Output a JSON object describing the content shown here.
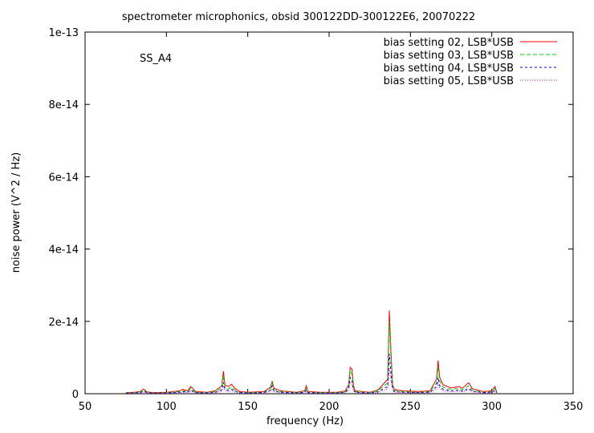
{
  "chart_data": {
    "type": "line",
    "title": "spectrometer microphonics, obsid 300122DD-300122E6, 20070222",
    "xlabel": "frequency (Hz)",
    "ylabel": "noise power (V^2 / Hz)",
    "annotation": "SS_A4",
    "xlim": [
      50,
      350
    ],
    "ylim": [
      0,
      1e-13
    ],
    "x_ticks": [
      50,
      100,
      150,
      200,
      250,
      300,
      350
    ],
    "x_tick_labels": [
      "50",
      "100",
      "150",
      "200",
      "250",
      "300",
      "350"
    ],
    "y_ticks": [
      0,
      2e-14,
      4e-14,
      6e-14,
      8e-14,
      1e-13
    ],
    "y_tick_labels": [
      "0",
      "2e-14",
      "4e-14",
      "6e-14",
      "8e-14",
      "1e-13"
    ],
    "legend_position": "top-right",
    "grid": false,
    "x": [
      75,
      80,
      84,
      86,
      88,
      92,
      100,
      108,
      110,
      113,
      115,
      118,
      125,
      130,
      134,
      135,
      136,
      138,
      140,
      142,
      145,
      150,
      160,
      164,
      165,
      166,
      170,
      180,
      185,
      186,
      187,
      195,
      205,
      210,
      212,
      213,
      214,
      215,
      216,
      225,
      230,
      236,
      237,
      238,
      239,
      240,
      245,
      255,
      262,
      266,
      267,
      268,
      270,
      275,
      280,
      282,
      285,
      286,
      288,
      295,
      300,
      302,
      303
    ],
    "series": [
      {
        "name": "bias setting 02, LSB*USB",
        "color": "#ff0000",
        "dash": "",
        "values": [
          3e-16,
          4e-16,
          6e-16,
          1.3e-15,
          5e-16,
          3e-16,
          4e-16,
          8e-16,
          1.2e-15,
          8e-16,
          2e-15,
          6e-16,
          4e-16,
          8e-16,
          2.2e-15,
          6.2e-15,
          2.4e-15,
          2e-15,
          2.6e-15,
          1.5e-15,
          6e-16,
          4e-16,
          6e-16,
          1.8e-15,
          3.5e-15,
          1.6e-15,
          8e-16,
          4e-16,
          8e-16,
          2.2e-15,
          6e-16,
          4e-16,
          4e-16,
          8e-16,
          2.5e-15,
          7.3e-15,
          6.8e-15,
          2.2e-15,
          8e-16,
          4e-16,
          1e-15,
          4e-15,
          2.3e-14,
          1.2e-14,
          2.6e-15,
          1.2e-15,
          8e-16,
          6e-16,
          8e-16,
          4e-15,
          9.2e-15,
          4.5e-15,
          2.5e-15,
          1.6e-15,
          2e-15,
          1.5e-15,
          2.8e-15,
          3e-15,
          1.4e-15,
          6e-16,
          8e-16,
          2e-15,
          5e-16
        ]
      },
      {
        "name": "bias setting 03, LSB*USB",
        "color": "#00cc00",
        "dash": "5,3",
        "values": [
          2e-16,
          3e-16,
          5e-16,
          1e-15,
          4e-16,
          2e-16,
          3e-16,
          6e-16,
          9e-16,
          6e-16,
          1.5e-15,
          4e-16,
          3e-16,
          6e-16,
          1.6e-15,
          5e-15,
          1.8e-15,
          1.3e-15,
          1.8e-15,
          1e-15,
          4e-16,
          3e-16,
          4e-16,
          1.5e-15,
          3e-15,
          1.2e-15,
          6e-16,
          3e-16,
          6e-16,
          1.6e-15,
          4e-16,
          3e-16,
          3e-16,
          6e-16,
          2e-15,
          6.5e-15,
          5.5e-15,
          1.6e-15,
          6e-16,
          3e-16,
          8e-16,
          3e-15,
          2e-14,
          1e-14,
          2e-15,
          9e-16,
          6e-16,
          4e-16,
          6e-16,
          3e-15,
          7.5e-15,
          3.5e-15,
          1.8e-15,
          1.2e-15,
          1.5e-15,
          1.1e-15,
          2e-15,
          2.2e-15,
          1e-15,
          4e-16,
          6e-16,
          1.5e-15,
          4e-16
        ]
      },
      {
        "name": "bias setting 04, LSB*USB",
        "color": "#0000cc",
        "dash": "3,3",
        "values": [
          1e-16,
          2e-16,
          3e-16,
          7e-16,
          3e-16,
          1e-16,
          2e-16,
          4e-16,
          6e-16,
          4e-16,
          1e-15,
          3e-16,
          2e-16,
          4e-16,
          1e-15,
          3.2e-15,
          1.2e-15,
          9e-16,
          1.2e-15,
          7e-16,
          3e-16,
          2e-16,
          3e-16,
          1e-15,
          2.2e-15,
          8e-16,
          4e-16,
          2e-16,
          4e-16,
          1e-15,
          3e-16,
          2e-16,
          2e-16,
          4e-16,
          1.4e-15,
          4.5e-15,
          3.8e-15,
          1.1e-15,
          4e-16,
          2e-16,
          5e-16,
          2e-15,
          1.1e-14,
          6e-15,
          1.3e-15,
          6e-16,
          4e-16,
          3e-16,
          4e-16,
          2e-15,
          4.5e-15,
          2.2e-15,
          1.2e-15,
          8e-16,
          1e-15,
          7e-16,
          1.3e-15,
          1.4e-15,
          7e-16,
          3e-16,
          4e-16,
          1e-15,
          3e-16
        ]
      },
      {
        "name": "bias setting 05, LSB*USB",
        "color": "#cc00cc",
        "dash": "1,2",
        "values": [
          1e-16,
          1e-16,
          2e-16,
          5e-16,
          2e-16,
          1e-16,
          1e-16,
          3e-16,
          4e-16,
          3e-16,
          7e-16,
          2e-16,
          1e-16,
          3e-16,
          7e-16,
          2.2e-15,
          8e-16,
          6e-16,
          8e-16,
          5e-16,
          2e-16,
          1e-16,
          2e-16,
          7e-16,
          1.5e-15,
          6e-16,
          3e-16,
          1e-16,
          3e-16,
          7e-16,
          2e-16,
          1e-16,
          1e-16,
          3e-16,
          1e-15,
          3e-15,
          2.5e-15,
          8e-16,
          3e-16,
          1e-16,
          3e-16,
          1.3e-15,
          7e-15,
          4e-15,
          9e-16,
          4e-16,
          3e-16,
          2e-16,
          3e-16,
          1.3e-15,
          3e-15,
          1.5e-15,
          8e-16,
          5e-16,
          7e-16,
          5e-16,
          9e-16,
          1e-15,
          5e-16,
          2e-16,
          3e-16,
          7e-16,
          2e-16
        ]
      }
    ]
  }
}
